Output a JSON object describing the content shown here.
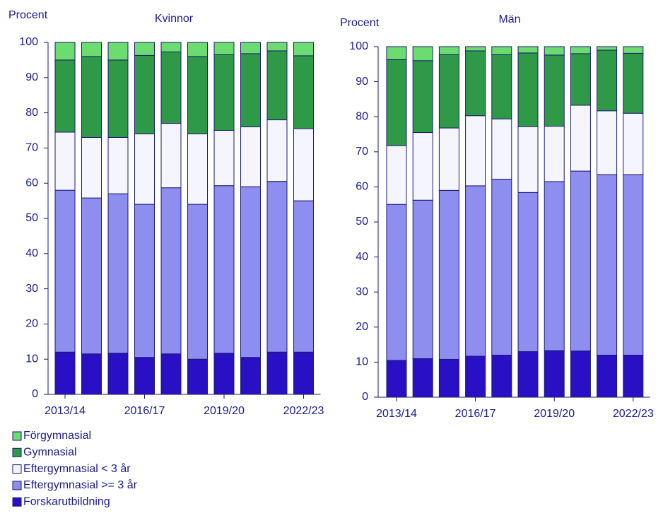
{
  "chart_data": [
    {
      "type": "bar",
      "stacked": true,
      "title": "Kvinnor",
      "y_label": "Procent",
      "categories": [
        "2013/14",
        null,
        null,
        "2016/17",
        null,
        null,
        "2019/20",
        null,
        null,
        "2022/23"
      ],
      "ylim": [
        0,
        100
      ],
      "yticks": [
        0,
        10,
        20,
        30,
        40,
        50,
        60,
        70,
        80,
        90,
        100
      ],
      "series": [
        {
          "name": "Forskarutbildning",
          "color": "#2a10c4",
          "values": [
            12,
            11.5,
            11.7,
            10.5,
            11.5,
            10,
            11.7,
            10.5,
            12,
            12
          ]
        },
        {
          "name": "Eftergymnasial >= 3 år",
          "color": "#8e8ef0",
          "values": [
            46,
            44.3,
            45.3,
            43.5,
            47.2,
            44,
            47.6,
            48.5,
            48.5,
            43
          ]
        },
        {
          "name": "Eftergymnasial < 3 år",
          "color": "#f5f5ff",
          "values": [
            16.5,
            17.2,
            16,
            20,
            18.3,
            20,
            15.7,
            17,
            17.5,
            20.5
          ]
        },
        {
          "name": "Gymnasial",
          "color": "#2e9a48",
          "values": [
            20.5,
            23,
            22,
            22.3,
            20.3,
            22,
            21.5,
            20.8,
            19.6,
            20.7
          ]
        },
        {
          "name": "Förgymnasial",
          "color": "#6cdc70",
          "values": [
            5,
            4,
            5,
            3.7,
            2.7,
            4,
            3.5,
            3.2,
            2.4,
            3.8
          ]
        }
      ]
    },
    {
      "type": "bar",
      "stacked": true,
      "title": "Män",
      "y_label": "Procent",
      "categories": [
        "2013/14",
        null,
        null,
        "2016/17",
        null,
        null,
        "2019/20",
        null,
        null,
        "2022/23"
      ],
      "ylim": [
        0,
        100
      ],
      "yticks": [
        0,
        10,
        20,
        30,
        40,
        50,
        60,
        70,
        80,
        90,
        100
      ],
      "series": [
        {
          "name": "Forskarutbildning",
          "color": "#2a10c4",
          "values": [
            10.5,
            11,
            10.8,
            11.7,
            12,
            13,
            13.3,
            13.2,
            12,
            12
          ]
        },
        {
          "name": "Eftergymnasial >= 3 år",
          "color": "#8e8ef0",
          "values": [
            44.5,
            45.2,
            48.2,
            48.6,
            50.2,
            45.4,
            48.2,
            51.3,
            51.5,
            51.5
          ]
        },
        {
          "name": "Eftergymnasial < 3 år",
          "color": "#f5f5ff",
          "values": [
            16.8,
            19.3,
            17.8,
            20,
            17.2,
            18.8,
            15.8,
            18.8,
            18.2,
            17.5
          ]
        },
        {
          "name": "Gymnasial",
          "color": "#2e9a48",
          "values": [
            24.5,
            20.5,
            20.9,
            18.5,
            18.3,
            21,
            20.3,
            14.7,
            17.3,
            17.1
          ]
        },
        {
          "name": "Förgymnasial",
          "color": "#6cdc70",
          "values": [
            3.7,
            4,
            2.3,
            1.2,
            2.3,
            1.8,
            2.4,
            2,
            1,
            1.9
          ]
        }
      ]
    }
  ]
}
